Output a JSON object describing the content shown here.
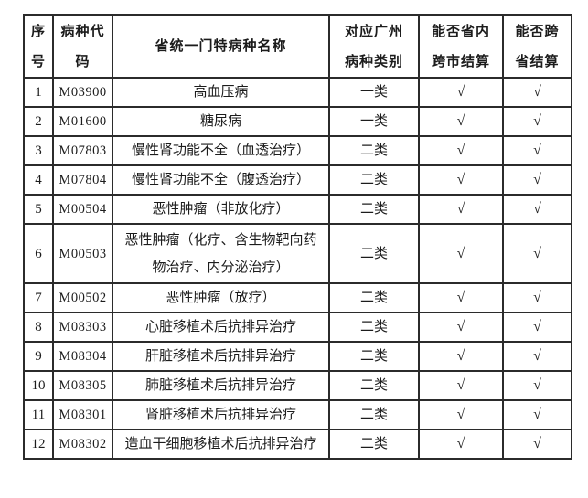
{
  "page": {
    "background_color": "#ffffff",
    "text_color": "#1c1c1c",
    "border_color": "#2b2b2b"
  },
  "table": {
    "headers": {
      "no": "序\n号",
      "code": "病种代\n码",
      "name": "省统一门特病种名称",
      "category": "对应广州\n病种类别",
      "intra_province": "能否省内\n跨市结算",
      "cross_province": "能否跨\n省结算"
    },
    "check_symbol": "√",
    "rows": [
      {
        "no": "1",
        "code": "M03900",
        "name": "高血压病",
        "category": "一类",
        "intra_province": "√",
        "cross_province": "√"
      },
      {
        "no": "2",
        "code": "M01600",
        "name": "糖尿病",
        "category": "一类",
        "intra_province": "√",
        "cross_province": "√"
      },
      {
        "no": "3",
        "code": "M07803",
        "name": "慢性肾功能不全（血透治疗）",
        "category": "二类",
        "intra_province": "√",
        "cross_province": "√"
      },
      {
        "no": "4",
        "code": "M07804",
        "name": "慢性肾功能不全（腹透治疗）",
        "category": "二类",
        "intra_province": "√",
        "cross_province": "√"
      },
      {
        "no": "5",
        "code": "M00504",
        "name": "恶性肿瘤（非放化疗）",
        "category": "二类",
        "intra_province": "√",
        "cross_province": "√"
      },
      {
        "no": "6",
        "code": "M00503",
        "name": "恶性肿瘤（化疗、含生物靶向药物治疗、内分泌治疗）",
        "category": "二类",
        "intra_province": "√",
        "cross_province": "√"
      },
      {
        "no": "7",
        "code": "M00502",
        "name": "恶性肿瘤（放疗）",
        "category": "二类",
        "intra_province": "√",
        "cross_province": "√"
      },
      {
        "no": "8",
        "code": "M08303",
        "name": "心脏移植术后抗排异治疗",
        "category": "二类",
        "intra_province": "√",
        "cross_province": "√"
      },
      {
        "no": "9",
        "code": "M08304",
        "name": "肝脏移植术后抗排异治疗",
        "category": "二类",
        "intra_province": "√",
        "cross_province": "√"
      },
      {
        "no": "10",
        "code": "M08305",
        "name": "肺脏移植术后抗排异治疗",
        "category": "二类",
        "intra_province": "√",
        "cross_province": "√"
      },
      {
        "no": "11",
        "code": "M08301",
        "name": "肾脏移植术后抗排异治疗",
        "category": "二类",
        "intra_province": "√",
        "cross_province": "√"
      },
      {
        "no": "12",
        "code": "M08302",
        "name": "造血干细胞移植术后抗排异治疗",
        "category": "二类",
        "intra_province": "√",
        "cross_province": "√"
      }
    ]
  }
}
